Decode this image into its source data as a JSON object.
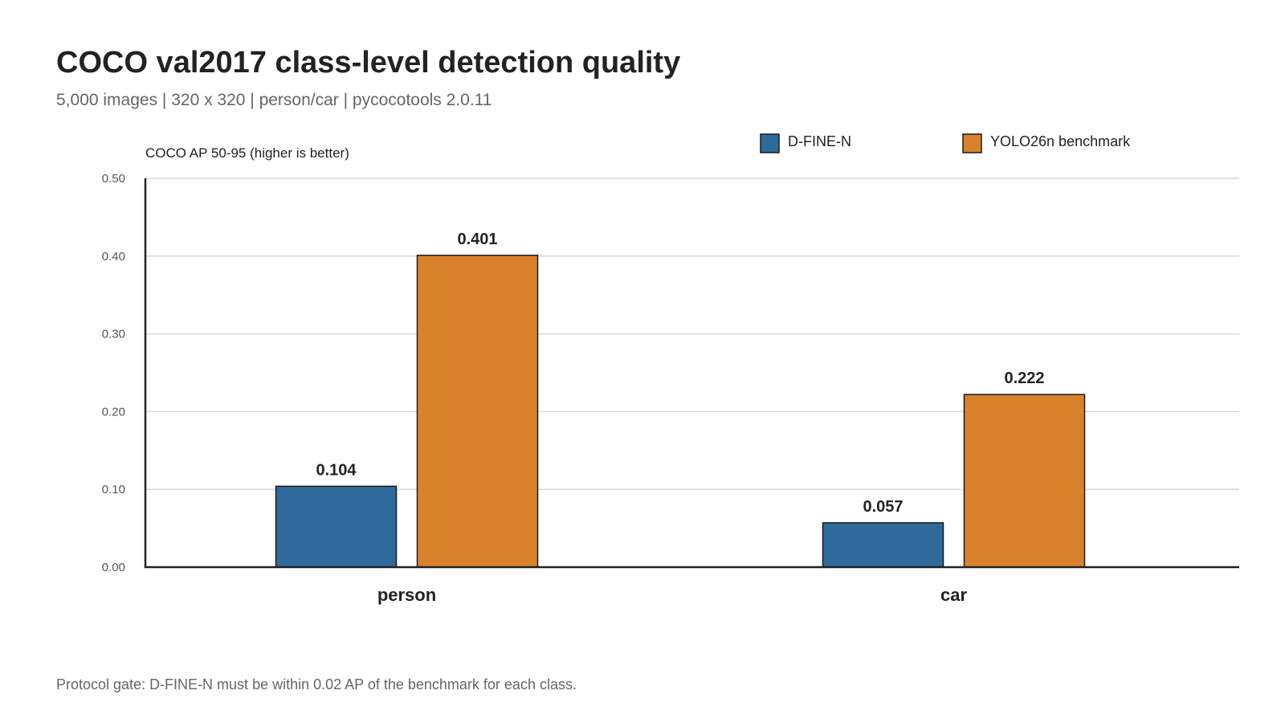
{
  "header": {
    "title": "COCO val2017 class-level detection quality",
    "subtitle": "5,000 images | 320 x 320 | person/car | pycocotools 2.0.11"
  },
  "footer": {
    "note": "Protocol gate: D-FINE-N must be within 0.02 AP of the benchmark for each class."
  },
  "chart_data": {
    "type": "bar",
    "title": "COCO val2017 class-level detection quality",
    "subtitle": "5,000 images | 320 x 320 | person/car | pycocotools 2.0.11",
    "xlabel": "",
    "ylabel": "COCO AP 50-95 (higher is better)",
    "categories": [
      "person",
      "car"
    ],
    "series": [
      {
        "name": "D-FINE-N",
        "color": "#2e6b9a",
        "values": [
          0.104,
          0.057
        ],
        "labels": [
          "0.104",
          "0.057"
        ]
      },
      {
        "name": "YOLO26n benchmark",
        "color": "#d9822b",
        "values": [
          0.401,
          0.222
        ],
        "labels": [
          "0.401",
          "0.222"
        ]
      }
    ],
    "ylim": [
      0,
      0.5
    ],
    "yticks": [
      0,
      0.1,
      0.2,
      0.3,
      0.4,
      0.5
    ],
    "ytick_labels": [
      "0.00",
      "0.10",
      "0.20",
      "0.30",
      "0.40",
      "0.50"
    ],
    "grid": true,
    "legend_position": "top-right"
  }
}
